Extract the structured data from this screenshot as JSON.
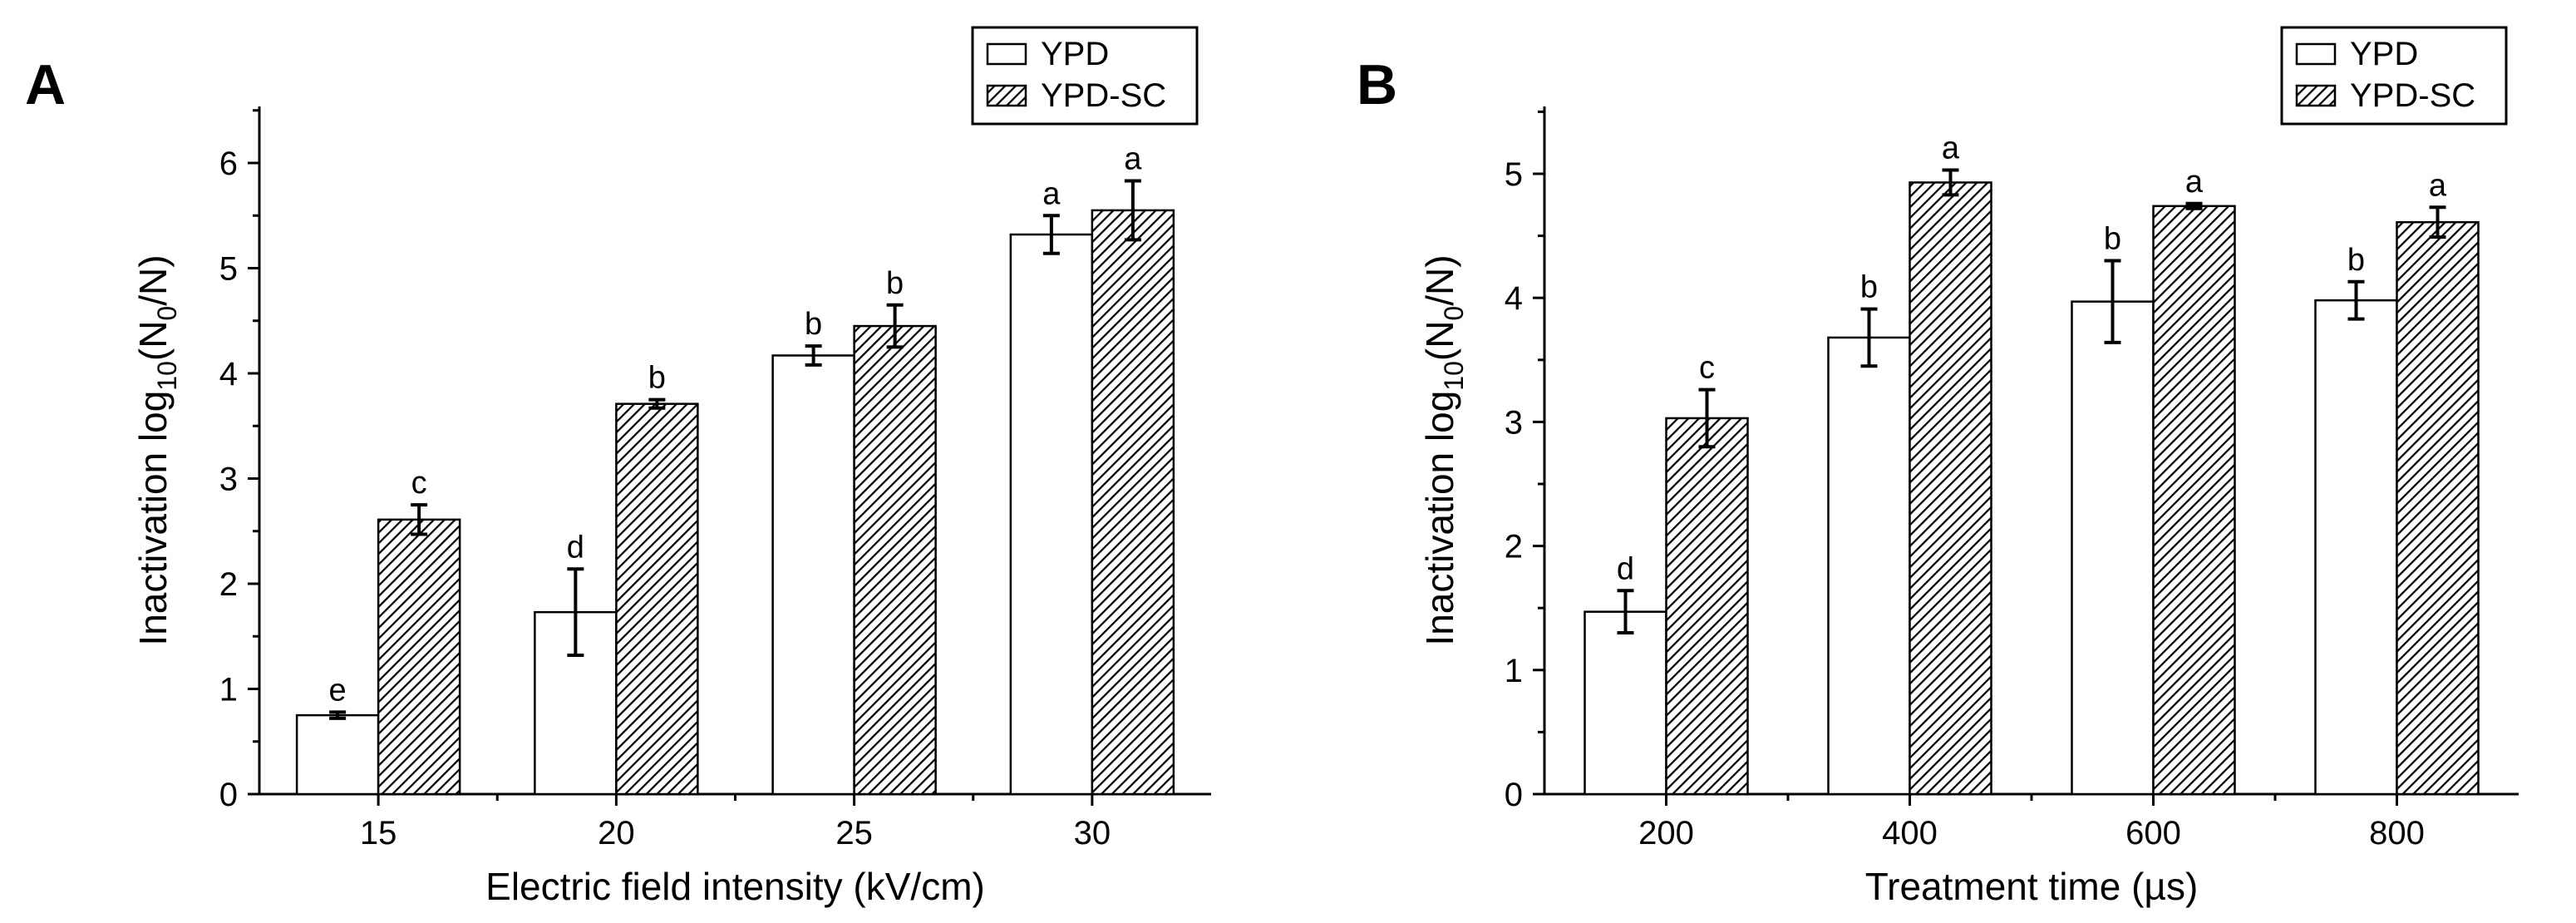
{
  "chart_data": [
    {
      "type": "bar",
      "panel": "A",
      "xlabel": "Electric field intensity (kV/cm)",
      "ylabel_main": "Inactivation log",
      "ylabel_sub": "10",
      "ylabel_rest": "(N",
      "ylabel_sub0": "0",
      "ylabel_end": "/N)",
      "categories": [
        "15",
        "20",
        "25",
        "30"
      ],
      "ylim": [
        0,
        6.5
      ],
      "yticks": [
        "0",
        "1",
        "2",
        "3",
        "4",
        "5",
        "6"
      ],
      "series": [
        {
          "name": "YPD",
          "style": "open",
          "values": [
            0.75,
            1.73,
            4.17,
            5.32
          ],
          "errors": [
            0.03,
            0.41,
            0.09,
            0.18
          ],
          "sig": [
            "e",
            "d",
            "b",
            "a"
          ]
        },
        {
          "name": "YPD-SC",
          "style": "hatched",
          "values": [
            2.61,
            3.71,
            4.45,
            5.55
          ],
          "errors": [
            0.14,
            0.04,
            0.2,
            0.28
          ],
          "sig": [
            "c",
            "b",
            "b",
            "a"
          ]
        }
      ],
      "legend": {
        "placement": "top-right",
        "entries": [
          "YPD",
          "YPD-SC"
        ]
      }
    },
    {
      "type": "bar",
      "panel": "B",
      "xlabel": "Treatment time (µs)",
      "ylabel_main": "Inactivation log",
      "ylabel_sub": "10",
      "ylabel_rest": "(N",
      "ylabel_sub0": "0",
      "ylabel_end": "/N)",
      "categories": [
        "200",
        "400",
        "600",
        "800"
      ],
      "ylim": [
        0,
        5.5
      ],
      "yticks": [
        "0",
        "1",
        "2",
        "3",
        "4",
        "5"
      ],
      "series": [
        {
          "name": "YPD",
          "style": "open",
          "values": [
            1.47,
            3.68,
            3.97,
            3.98
          ],
          "errors": [
            0.17,
            0.23,
            0.33,
            0.15
          ],
          "sig": [
            "d",
            "b",
            "b",
            "b"
          ]
        },
        {
          "name": "YPD-SC",
          "style": "hatched",
          "values": [
            3.03,
            4.93,
            4.74,
            4.61
          ],
          "errors": [
            0.23,
            0.1,
            0.02,
            0.12
          ],
          "sig": [
            "c",
            "a",
            "a",
            "a"
          ]
        }
      ],
      "legend": {
        "placement": "top-right",
        "entries": [
          "YPD",
          "YPD-SC"
        ]
      }
    }
  ]
}
